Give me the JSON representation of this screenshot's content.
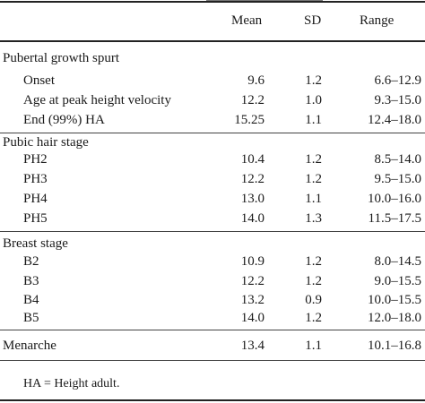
{
  "header": {
    "mean": "Mean",
    "sd": "SD",
    "range": "Range"
  },
  "sections": [
    {
      "title": "Pubertal growth spurt",
      "rows": [
        {
          "label": "Onset",
          "mean": "9.6",
          "sd": "1.2",
          "range": "6.6–12.9"
        },
        {
          "label": "Age at peak height velocity",
          "mean": "12.2",
          "sd": "1.0",
          "range": "9.3–15.0"
        },
        {
          "label": "End (99%) HA",
          "mean": "15.25",
          "sd": "1.1",
          "range": "12.4–18.0"
        }
      ]
    },
    {
      "title": "Pubic hair stage",
      "rows": [
        {
          "label": "PH2",
          "mean": "10.4",
          "sd": "1.2",
          "range": "8.5–14.0"
        },
        {
          "label": "PH3",
          "mean": "12.2",
          "sd": "1.2",
          "range": "9.5–15.0"
        },
        {
          "label": "PH4",
          "mean": "13.0",
          "sd": "1.1",
          "range": "10.0–16.0"
        },
        {
          "label": "PH5",
          "mean": "14.0",
          "sd": "1.3",
          "range": "11.5–17.5"
        }
      ]
    },
    {
      "title": "Breast stage",
      "rows": [
        {
          "label": "B2",
          "mean": "10.9",
          "sd": "1.2",
          "range": "8.0–14.5"
        },
        {
          "label": "B3",
          "mean": "12.2",
          "sd": "1.2",
          "range": "9.0–15.5"
        },
        {
          "label": "B4",
          "mean": "13.2",
          "sd": "0.9",
          "range": "10.0–15.5"
        },
        {
          "label": "B5",
          "mean": "14.0",
          "sd": "1.2",
          "range": "12.0–18.0"
        }
      ]
    }
  ],
  "menarche": {
    "label": "Menarche",
    "mean": "13.4",
    "sd": "1.1",
    "range": "10.1–16.8"
  },
  "footnote": "HA = Height adult."
}
